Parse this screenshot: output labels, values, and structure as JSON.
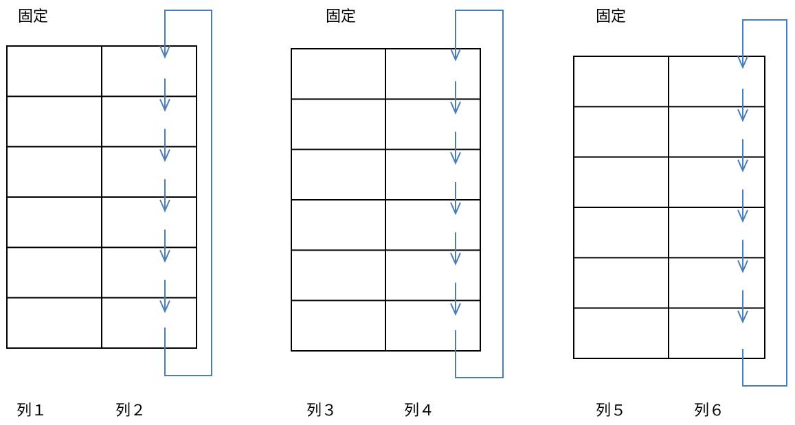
{
  "colors": {
    "grid": "#000000",
    "arrow": "#4a7ebb"
  },
  "rows_per_table": 6,
  "tables": [
    {
      "fixed_label": "固定",
      "col_left_label": "列１",
      "col_right_label": "列２"
    },
    {
      "fixed_label": "固定",
      "col_left_label": "列３",
      "col_right_label": "列４"
    },
    {
      "fixed_label": "固定",
      "col_left_label": "列５",
      "col_right_label": "列６"
    }
  ]
}
